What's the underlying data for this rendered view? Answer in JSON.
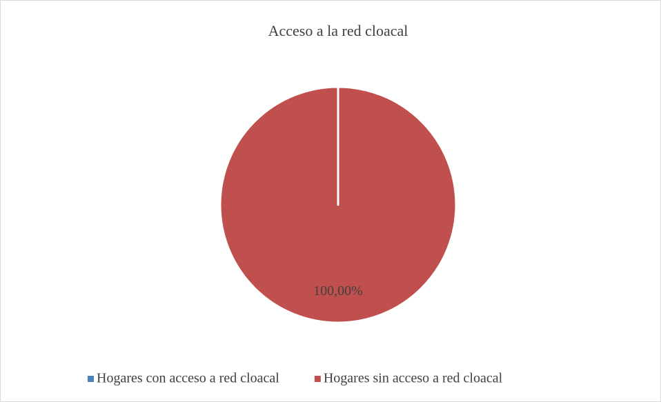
{
  "chart_data": {
    "type": "pie",
    "title": "Acceso a la red cloacal",
    "categories": [
      "Hogares con acceso a red cloacal",
      "Hogares sin acceso a red cloacal"
    ],
    "values": [
      0,
      100
    ],
    "value_labels": [
      null,
      "100,00%"
    ],
    "colors": [
      "#4f81bd",
      "#c0504d"
    ],
    "legend": "bottom"
  }
}
